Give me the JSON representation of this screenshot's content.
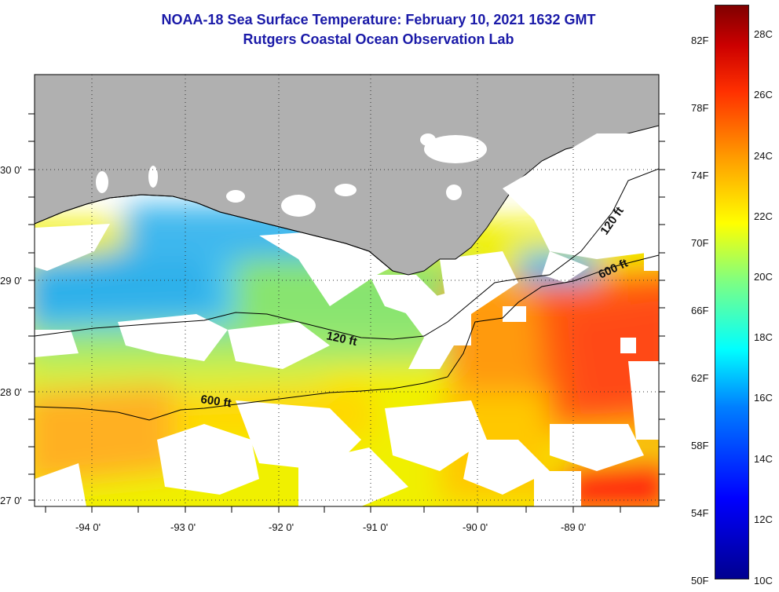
{
  "header": {
    "title": "NOAA-18 Sea Surface Temperature:  February 10, 2021 1632 GMT",
    "subtitle": "Rutgers Coastal Ocean Observation Lab"
  },
  "map": {
    "lat_labels": [
      "30 0'",
      "29 0'",
      "28 0'",
      "27 0'"
    ],
    "lon_labels": [
      "-94 0'",
      "-93 0'",
      "-92 0'",
      "-91 0'",
      "-90 0'",
      "-89 0'"
    ],
    "contours": {
      "shelf_120": "120 ft",
      "shelf_600": "600 ft",
      "east_120": "120 ft",
      "east_600": "600 ft"
    }
  },
  "colorbar": {
    "fahrenheit": [
      "82F",
      "78F",
      "74F",
      "70F",
      "66F",
      "62F",
      "58F",
      "54F",
      "50F"
    ],
    "celsius": [
      "28C",
      "26C",
      "24C",
      "22C",
      "20C",
      "18C",
      "16C",
      "14C",
      "12C",
      "10C"
    ]
  },
  "colors": {
    "land": "#b0b0b0",
    "title": "#1a1aa8",
    "cloud": "#ffffff"
  }
}
